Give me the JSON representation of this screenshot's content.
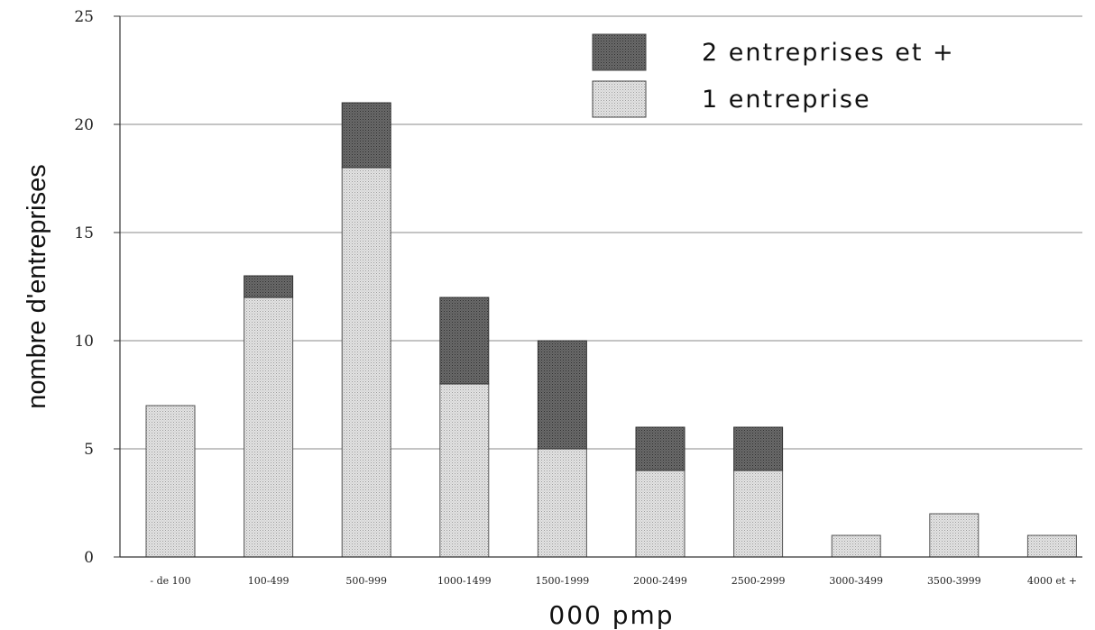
{
  "chart_data": {
    "type": "bar",
    "stacked": true,
    "categories": [
      "- de 100",
      "100-499",
      "500-999",
      "1000-1499",
      "1500-1999",
      "2000-2499",
      "2500-2999",
      "3000-3499",
      "3500-3999",
      "4000 et +"
    ],
    "series": [
      {
        "name": "1 entreprise",
        "values": [
          7,
          12,
          18,
          8,
          5,
          4,
          4,
          1,
          2,
          1
        ],
        "color": "#cfcfcf"
      },
      {
        "name": "2 entreprises et +",
        "values": [
          0,
          1,
          3,
          4,
          5,
          2,
          2,
          0,
          0,
          0
        ],
        "color": "#5c5c5c"
      }
    ],
    "xlabel": "000 pmp",
    "ylabel": "nombre d'entreprises",
    "ylim": [
      0,
      25
    ],
    "yticks": [
      0,
      5,
      10,
      15,
      20,
      25
    ],
    "grid": true,
    "legend": {
      "placement": "top-right",
      "order": [
        "2 entreprises et +",
        "1 entreprise"
      ]
    }
  }
}
